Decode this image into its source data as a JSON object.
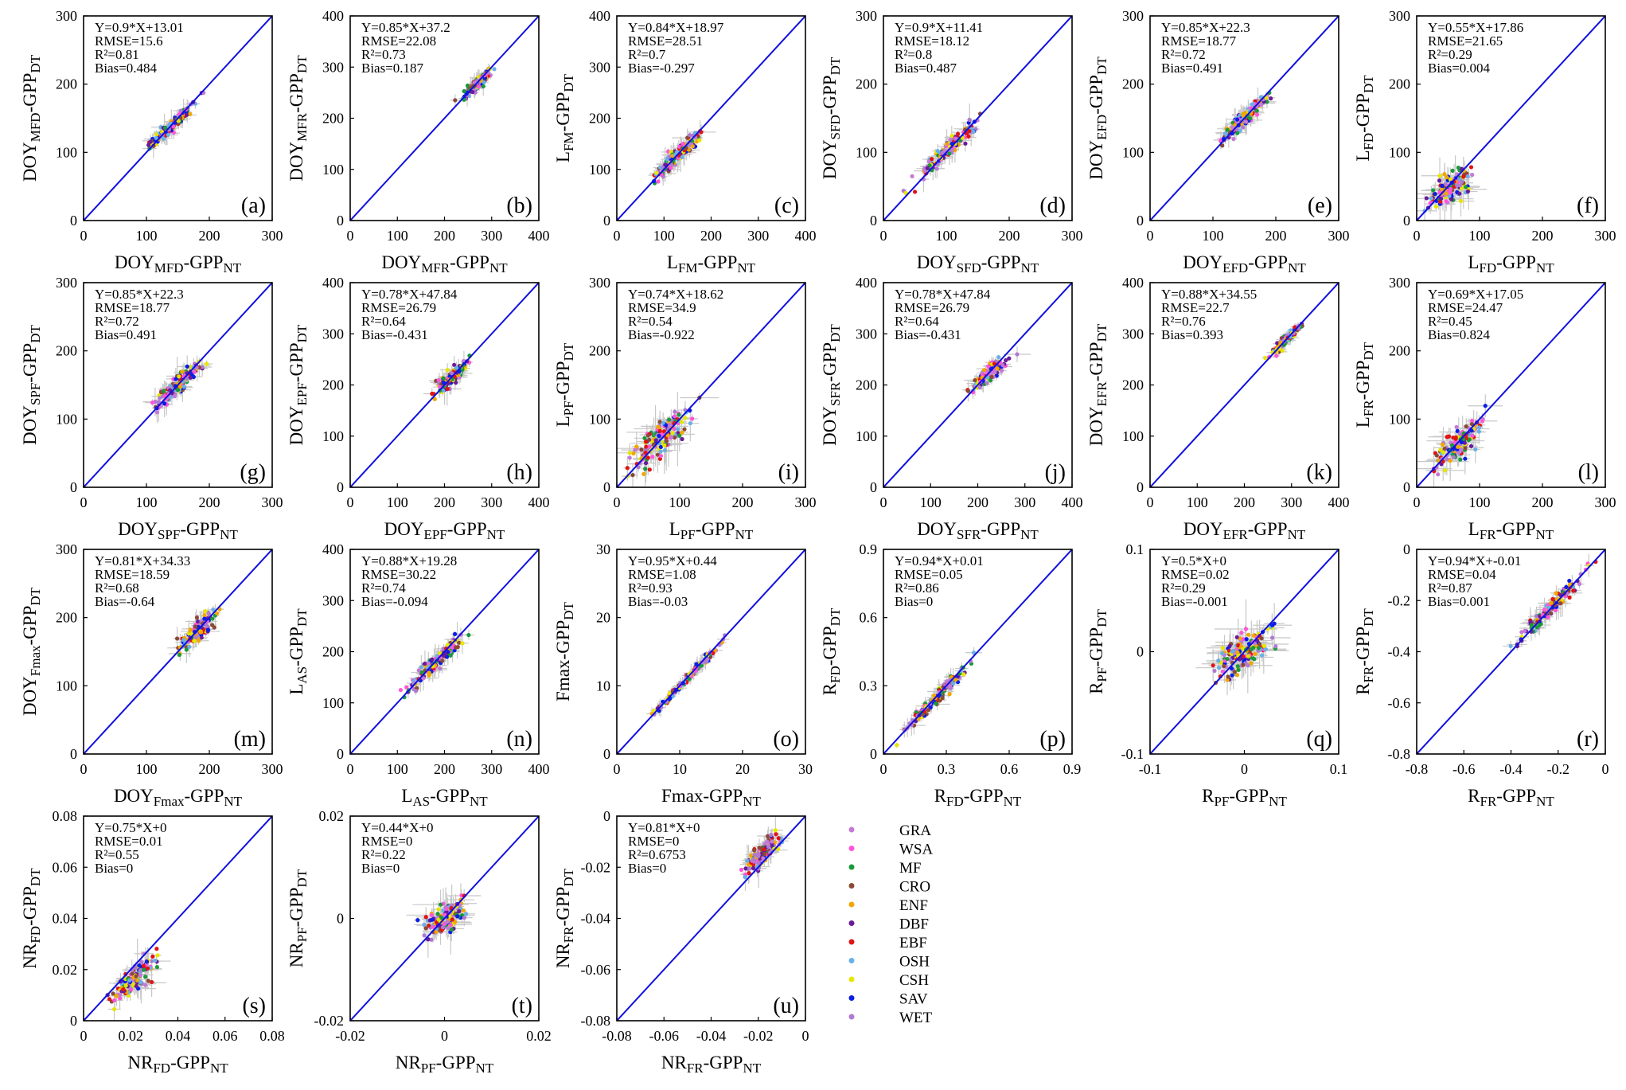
{
  "figure": {
    "panel_count": 21
  },
  "legend": {
    "items": [
      {
        "label": "GRA",
        "color": "#c47ad6"
      },
      {
        "label": "WSA",
        "color": "#ff55d9"
      },
      {
        "label": "MF",
        "color": "#1a9a3a"
      },
      {
        "label": "CRO",
        "color": "#8b4a36"
      },
      {
        "label": "ENF",
        "color": "#f0a800"
      },
      {
        "label": "DBF",
        "color": "#6a1b9a"
      },
      {
        "label": "EBF",
        "color": "#e01414"
      },
      {
        "label": "OSH",
        "color": "#6ab0e6"
      },
      {
        "label": "CSH",
        "color": "#e6e600"
      },
      {
        "label": "SAV",
        "color": "#0a1ee6"
      },
      {
        "label": "WET",
        "color": "#b07ad0"
      }
    ]
  },
  "chart_data": [
    {
      "id": "a",
      "type": "scatter",
      "letter": "(a)",
      "eq": "Y=0.9*X+13.01",
      "rmse": "RMSE=15.6",
      "r2": "R²=0.81",
      "bias": "Bias=0.484",
      "slope": 0.9,
      "intercept": 13.01,
      "xlim": [
        0,
        300
      ],
      "ylim": [
        0,
        300
      ],
      "xticks": [
        "0",
        "100",
        "200",
        "300"
      ],
      "yticks": [
        "0",
        "100",
        "200",
        "300"
      ],
      "x_base": "DOY",
      "x_sub": "MFD",
      "x_suffix": "-GPP",
      "x_suffix_sub": "NT",
      "y_base": "DOY",
      "y_sub": "MFD",
      "y_suffix": "-GPP",
      "y_suffix_sub": "DT",
      "center": [
        140,
        140
      ],
      "spread": 35,
      "n": 130,
      "scatter": 10
    },
    {
      "id": "b",
      "type": "scatter",
      "letter": "(b)",
      "eq": "Y=0.85*X+37.2",
      "rmse": "RMSE=22.08",
      "r2": "R²=0.73",
      "bias": "Bias=0.187",
      "slope": 0.85,
      "intercept": 37.2,
      "xlim": [
        0,
        400
      ],
      "ylim": [
        0,
        400
      ],
      "xticks": [
        "0",
        "100",
        "200",
        "300",
        "400"
      ],
      "yticks": [
        "0",
        "100",
        "200",
        "300",
        "400"
      ],
      "x_base": "DOY",
      "x_sub": "MFR",
      "x_suffix": "-GPP",
      "x_suffix_sub": "NT",
      "y_base": "DOY",
      "y_sub": "MFR",
      "y_suffix": "-GPP",
      "y_suffix_sub": "DT",
      "center": [
        270,
        270
      ],
      "spread": 30,
      "n": 130,
      "scatter": 12
    },
    {
      "id": "c",
      "type": "scatter",
      "letter": "(c)",
      "eq": "Y=0.84*X+18.97",
      "rmse": "RMSE=28.51",
      "r2": "R²=0.7",
      "bias": "Bias=-0.297",
      "slope": 0.84,
      "intercept": 18.97,
      "xlim": [
        0,
        400
      ],
      "ylim": [
        0,
        400
      ],
      "xticks": [
        "0",
        "100",
        "200",
        "300",
        "400"
      ],
      "yticks": [
        "0",
        "100",
        "200",
        "300",
        "400"
      ],
      "x_base": "L",
      "x_sub": "FM",
      "x_suffix": "-GPP",
      "x_suffix_sub": "NT",
      "y_base": "L",
      "y_sub": "FM",
      "y_suffix": "-GPP",
      "y_suffix_sub": "DT",
      "center": [
        130,
        130
      ],
      "spread": 45,
      "n": 140,
      "scatter": 18
    },
    {
      "id": "d",
      "type": "scatter",
      "letter": "(d)",
      "eq": "Y=0.9*X+11.41",
      "rmse": "RMSE=18.12",
      "r2": "R²=0.8",
      "bias": "Bias=0.487",
      "slope": 0.9,
      "intercept": 11.41,
      "xlim": [
        0,
        300
      ],
      "ylim": [
        0,
        300
      ],
      "xticks": [
        "0",
        "100",
        "200",
        "300"
      ],
      "yticks": [
        "0",
        "100",
        "200",
        "300"
      ],
      "x_base": "DOY",
      "x_sub": "SFD",
      "x_suffix": "-GPP",
      "x_suffix_sub": "NT",
      "y_base": "DOY",
      "y_sub": "SFD",
      "y_suffix": "-GPP",
      "y_suffix_sub": "DT",
      "center": [
        100,
        100
      ],
      "spread": 45,
      "n": 140,
      "scatter": 12
    },
    {
      "id": "e",
      "type": "scatter",
      "letter": "(e)",
      "eq": "Y=0.85*X+22.3",
      "rmse": "RMSE=18.77",
      "r2": "R²=0.72",
      "bias": "Bias=0.491",
      "slope": 0.85,
      "intercept": 22.3,
      "xlim": [
        0,
        300
      ],
      "ylim": [
        0,
        300
      ],
      "xticks": [
        "0",
        "100",
        "200",
        "300"
      ],
      "yticks": [
        "0",
        "100",
        "200",
        "300"
      ],
      "x_base": "DOY",
      "x_sub": "EFD",
      "x_suffix": "-GPP",
      "x_suffix_sub": "NT",
      "y_base": "DOY",
      "y_sub": "EFD",
      "y_suffix": "-GPP",
      "y_suffix_sub": "DT",
      "center": [
        150,
        150
      ],
      "spread": 35,
      "n": 140,
      "scatter": 12
    },
    {
      "id": "f",
      "type": "scatter",
      "letter": "(f)",
      "eq": "Y=0.55*X+17.86",
      "rmse": "RMSE=21.65",
      "r2": "R²=0.29",
      "bias": "Bias=0.004",
      "slope": 0.55,
      "intercept": 17.86,
      "xlim": [
        0,
        300
      ],
      "ylim": [
        0,
        300
      ],
      "xticks": [
        "0",
        "100",
        "200",
        "300"
      ],
      "yticks": [
        "0",
        "100",
        "200",
        "300"
      ],
      "x_base": "L",
      "x_sub": "FD",
      "x_suffix": "-GPP",
      "x_suffix_sub": "NT",
      "y_base": "L",
      "y_sub": "FD",
      "y_suffix": "-GPP",
      "y_suffix_sub": "DT",
      "center": [
        55,
        50
      ],
      "spread": 30,
      "n": 130,
      "scatter": 22
    },
    {
      "id": "g",
      "type": "scatter",
      "letter": "(g)",
      "eq": "Y=0.85*X+22.3",
      "rmse": "RMSE=18.77",
      "r2": "R²=0.72",
      "bias": "Bias=0.491",
      "slope": 0.85,
      "intercept": 22.3,
      "xlim": [
        0,
        300
      ],
      "ylim": [
        0,
        300
      ],
      "xticks": [
        "0",
        "100",
        "200",
        "300"
      ],
      "yticks": [
        "0",
        "100",
        "200",
        "300"
      ],
      "x_base": "DOY",
      "x_sub": "SPF",
      "x_suffix": "-GPP",
      "x_suffix_sub": "NT",
      "y_base": "DOY",
      "y_sub": "SPF",
      "y_suffix": "-GPP",
      "y_suffix_sub": "DT",
      "center": [
        150,
        150
      ],
      "spread": 35,
      "n": 140,
      "scatter": 14
    },
    {
      "id": "h",
      "type": "scatter",
      "letter": "(h)",
      "eq": "Y=0.78*X+47.84",
      "rmse": "RMSE=26.79",
      "r2": "R²=0.64",
      "bias": "Bias=-0.431",
      "slope": 0.78,
      "intercept": 47.84,
      "xlim": [
        0,
        400
      ],
      "ylim": [
        0,
        400
      ],
      "xticks": [
        "0",
        "100",
        "200",
        "300",
        "400"
      ],
      "yticks": [
        "0",
        "100",
        "200",
        "300",
        "400"
      ],
      "x_base": "DOY",
      "x_sub": "EPF",
      "x_suffix": "-GPP",
      "x_suffix_sub": "NT",
      "y_base": "DOY",
      "y_sub": "EPF",
      "y_suffix": "-GPP",
      "y_suffix_sub": "DT",
      "center": [
        215,
        215
      ],
      "spread": 35,
      "n": 130,
      "scatter": 16
    },
    {
      "id": "i",
      "type": "scatter",
      "letter": "(i)",
      "eq": "Y=0.74*X+18.62",
      "rmse": "RMSE=34.9",
      "r2": "R²=0.54",
      "bias": "Bias=-0.922",
      "slope": 0.74,
      "intercept": 18.62,
      "xlim": [
        0,
        300
      ],
      "ylim": [
        0,
        300
      ],
      "xticks": [
        "0",
        "100",
        "200",
        "300"
      ],
      "yticks": [
        "0",
        "100",
        "200",
        "300"
      ],
      "x_base": "L",
      "x_sub": "PF",
      "x_suffix": "-GPP",
      "x_suffix_sub": "NT",
      "y_base": "L",
      "y_sub": "PF",
      "y_suffix": "-GPP",
      "y_suffix_sub": "DT",
      "center": [
        70,
        65
      ],
      "spread": 45,
      "n": 150,
      "scatter": 25
    },
    {
      "id": "j",
      "type": "scatter",
      "letter": "(j)",
      "eq": "Y=0.78*X+47.84",
      "rmse": "RMSE=26.79",
      "r2": "R²=0.64",
      "bias": "Bias=-0.431",
      "slope": 0.78,
      "intercept": 47.84,
      "xlim": [
        0,
        400
      ],
      "ylim": [
        0,
        400
      ],
      "xticks": [
        "0",
        "100",
        "200",
        "300",
        "400"
      ],
      "yticks": [
        "0",
        "100",
        "200",
        "300",
        "400"
      ],
      "x_base": "DOY",
      "x_sub": "SFR",
      "x_suffix": "-GPP",
      "x_suffix_sub": "NT",
      "y_base": "DOY",
      "y_sub": "SFR",
      "y_suffix": "-GPP",
      "y_suffix_sub": "DT",
      "center": [
        225,
        225
      ],
      "spread": 35,
      "n": 130,
      "scatter": 16
    },
    {
      "id": "k",
      "type": "scatter",
      "letter": "(k)",
      "eq": "Y=0.88*X+34.55",
      "rmse": "RMSE=22.7",
      "r2": "R²=0.76",
      "bias": "Bias=0.393",
      "slope": 0.88,
      "intercept": 34.55,
      "xlim": [
        0,
        400
      ],
      "ylim": [
        0,
        400
      ],
      "xticks": [
        "0",
        "100",
        "200",
        "300",
        "400"
      ],
      "yticks": [
        "0",
        "100",
        "200",
        "300",
        "400"
      ],
      "x_base": "DOY",
      "x_sub": "EFR",
      "x_suffix": "-GPP",
      "x_suffix_sub": "NT",
      "y_base": "DOY",
      "y_sub": "EFR",
      "y_suffix": "-GPP",
      "y_suffix_sub": "DT",
      "center": [
        290,
        290
      ],
      "spread": 30,
      "n": 130,
      "scatter": 10
    },
    {
      "id": "l",
      "type": "scatter",
      "letter": "(l)",
      "eq": "Y=0.69*X+17.05",
      "rmse": "RMSE=24.47",
      "r2": "R²=0.45",
      "bias": "Bias=0.824",
      "slope": 0.69,
      "intercept": 17.05,
      "xlim": [
        0,
        300
      ],
      "ylim": [
        0,
        300
      ],
      "xticks": [
        "0",
        "100",
        "200",
        "300"
      ],
      "yticks": [
        "0",
        "100",
        "200",
        "300"
      ],
      "x_base": "L",
      "x_sub": "FR",
      "x_suffix": "-GPP",
      "x_suffix_sub": "NT",
      "y_base": "L",
      "y_sub": "FR",
      "y_suffix": "-GPP",
      "y_suffix_sub": "DT",
      "center": [
        65,
        55
      ],
      "spread": 35,
      "n": 130,
      "scatter": 22
    },
    {
      "id": "m",
      "type": "scatter",
      "letter": "(m)",
      "eq": "Y=0.81*X+34.33",
      "rmse": "RMSE=18.59",
      "r2": "R²=0.68",
      "bias": "Bias=-0.64",
      "slope": 0.81,
      "intercept": 34.33,
      "xlim": [
        0,
        300
      ],
      "ylim": [
        0,
        300
      ],
      "xticks": [
        "0",
        "100",
        "200",
        "300"
      ],
      "yticks": [
        "0",
        "100",
        "200",
        "300"
      ],
      "x_base": "DOY",
      "x_sub": "Fmax",
      "x_suffix": "-GPP",
      "x_suffix_sub": "NT",
      "y_base": "DOY",
      "y_sub": "Fmax",
      "y_suffix": "-GPP",
      "y_suffix_sub": "DT",
      "center": [
        180,
        180
      ],
      "spread": 28,
      "n": 130,
      "scatter": 14
    },
    {
      "id": "n",
      "type": "scatter",
      "letter": "(n)",
      "eq": "Y=0.88*X+19.28",
      "rmse": "RMSE=30.22",
      "r2": "R²=0.74",
      "bias": "Bias=-0.094",
      "slope": 0.88,
      "intercept": 19.28,
      "xlim": [
        0,
        400
      ],
      "ylim": [
        0,
        400
      ],
      "xticks": [
        "0",
        "100",
        "200",
        "300",
        "400"
      ],
      "yticks": [
        "0",
        "100",
        "200",
        "300",
        "400"
      ],
      "x_base": "L",
      "x_sub": "AS",
      "x_suffix": "-GPP",
      "x_suffix_sub": "NT",
      "y_base": "L",
      "y_sub": "AS",
      "y_suffix": "-GPP",
      "y_suffix_sub": "DT",
      "center": [
        180,
        180
      ],
      "spread": 55,
      "n": 140,
      "scatter": 16
    },
    {
      "id": "o",
      "type": "scatter",
      "letter": "(o)",
      "eq": "Y=0.95*X+0.44",
      "rmse": "RMSE=1.08",
      "r2": "R²=0.93",
      "bias": "Bias=-0.03",
      "slope": 0.95,
      "intercept": 0.44,
      "xlim": [
        0,
        30
      ],
      "ylim": [
        0,
        30
      ],
      "xticks": [
        "0",
        "10",
        "20",
        "30"
      ],
      "yticks": [
        "0",
        "10",
        "20",
        "30"
      ],
      "x_base": "Fmax",
      "x_sub": "",
      "x_suffix": "-GPP",
      "x_suffix_sub": "NT",
      "y_base": "Fmax",
      "y_sub": "",
      "y_suffix": "-GPP",
      "y_suffix_sub": "DT",
      "center": [
        11,
        11
      ],
      "spread": 5,
      "n": 140,
      "scatter": 0.6
    },
    {
      "id": "p",
      "type": "scatter",
      "letter": "(p)",
      "eq": "Y=0.94*X+0.01",
      "rmse": "RMSE=0.05",
      "r2": "R²=0.86",
      "bias": "Bias=0",
      "slope": 0.94,
      "intercept": 0.01,
      "xlim": [
        0,
        0.9
      ],
      "ylim": [
        0,
        0.9
      ],
      "xticks": [
        "0",
        "0.3",
        "0.6",
        "0.9"
      ],
      "yticks": [
        "0",
        "0.3",
        "0.6",
        "0.9"
      ],
      "x_base": "R",
      "x_sub": "FD",
      "x_suffix": "-GPP",
      "x_suffix_sub": "NT",
      "y_base": "R",
      "y_sub": "FD",
      "y_suffix": "-GPP",
      "y_suffix_sub": "DT",
      "center": [
        0.25,
        0.25
      ],
      "spread": 0.13,
      "n": 140,
      "scatter": 0.03
    },
    {
      "id": "q",
      "type": "scatter",
      "letter": "(q)",
      "eq": "Y=0.5*X+0",
      "rmse": "RMSE=0.02",
      "r2": "R²=0.29",
      "bias": "Bias=-0.001",
      "slope": 0.5,
      "intercept": 0,
      "xlim": [
        -0.1,
        0.1
      ],
      "ylim": [
        -0.1,
        0.1
      ],
      "xticks": [
        "-0.1",
        "0",
        "0.1"
      ],
      "yticks": [
        "-0.1",
        "0",
        "0.1"
      ],
      "x_base": "R",
      "x_sub": "PF",
      "x_suffix": "-GPP",
      "x_suffix_sub": "NT",
      "y_base": "R",
      "y_sub": "PF",
      "y_suffix": "-GPP",
      "y_suffix_sub": "DT",
      "center": [
        0,
        0
      ],
      "spread": 0.03,
      "n": 150,
      "scatter": 0.018
    },
    {
      "id": "r",
      "type": "scatter",
      "letter": "(r)",
      "eq": "Y=0.94*X+-0.01",
      "rmse": "RMSE=0.04",
      "r2": "R²=0.87",
      "bias": "Bias=0.001",
      "slope": 0.94,
      "intercept": -0.01,
      "xlim": [
        -0.8,
        0
      ],
      "ylim": [
        -0.8,
        0
      ],
      "xticks": [
        "-0.8",
        "-0.6",
        "-0.4",
        "-0.2",
        "0"
      ],
      "yticks": [
        "-0.8",
        "-0.6",
        "-0.4",
        "-0.2",
        "0"
      ],
      "x_base": "R",
      "x_sub": "FR",
      "x_suffix": "-GPP",
      "x_suffix_sub": "NT",
      "y_base": "R",
      "y_sub": "FR",
      "y_suffix": "-GPP",
      "y_suffix_sub": "DT",
      "center": [
        -0.22,
        -0.22
      ],
      "spread": 0.14,
      "n": 140,
      "scatter": 0.03
    },
    {
      "id": "s",
      "type": "scatter",
      "letter": "(s)",
      "eq": "Y=0.75*X+0",
      "rmse": "RMSE=0.01",
      "r2": "R²=0.55",
      "bias": "Bias=0",
      "slope": 0.75,
      "intercept": 0,
      "xlim": [
        0,
        0.08
      ],
      "ylim": [
        0,
        0.08
      ],
      "xticks": [
        "0",
        "0.02",
        "0.04",
        "0.06",
        "0.08"
      ],
      "yticks": [
        "0",
        "0.02",
        "0.04",
        "0.06",
        "0.08"
      ],
      "x_base": "NR",
      "x_sub": "FD",
      "x_suffix": "-GPP",
      "x_suffix_sub": "NT",
      "y_base": "NR",
      "y_sub": "FD",
      "y_suffix": "-GPP",
      "y_suffix_sub": "DT",
      "center": [
        0.022,
        0.02
      ],
      "spread": 0.008,
      "n": 140,
      "scatter": 0.005
    },
    {
      "id": "t",
      "type": "scatter",
      "letter": "(t)",
      "eq": "Y=0.44*X+0",
      "rmse": "RMSE=0",
      "r2": "R²=0.22",
      "bias": "Bias=0",
      "slope": 0.44,
      "intercept": 0,
      "xlim": [
        -0.02,
        0.02
      ],
      "ylim": [
        -0.02,
        0.02
      ],
      "xticks": [
        "-0.02",
        "0",
        "0.02"
      ],
      "yticks": [
        "-0.02",
        "0",
        "0.02"
      ],
      "x_base": "NR",
      "x_sub": "PF",
      "x_suffix": "-GPP",
      "x_suffix_sub": "NT",
      "y_base": "NR",
      "y_sub": "PF",
      "y_suffix": "-GPP",
      "y_suffix_sub": "DT",
      "center": [
        0,
        0
      ],
      "spread": 0.004,
      "n": 140,
      "scatter": 0.003
    },
    {
      "id": "u",
      "type": "scatter",
      "letter": "(u)",
      "eq": "Y=0.81*X+0",
      "rmse": "RMSE=0",
      "r2": "R²=0.6753",
      "bias": "Bias=0",
      "slope": 0.81,
      "intercept": 0,
      "xlim": [
        -0.08,
        0
      ],
      "ylim": [
        -0.08,
        0
      ],
      "xticks": [
        "-0.08",
        "-0.06",
        "-0.04",
        "-0.02",
        "0"
      ],
      "yticks": [
        "-0.08",
        "-0.06",
        "-0.04",
        "-0.02",
        "0"
      ],
      "x_base": "NR",
      "x_sub": "FR",
      "x_suffix": "-GPP",
      "x_suffix_sub": "NT",
      "y_base": "NR",
      "y_sub": "FR",
      "y_suffix": "-GPP",
      "y_suffix_sub": "DT",
      "center": [
        -0.019,
        -0.019
      ],
      "spread": 0.007,
      "n": 140,
      "scatter": 0.004
    }
  ]
}
